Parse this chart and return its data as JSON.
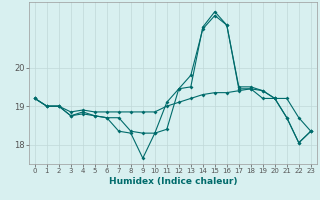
{
  "xlabel": "Humidex (Indice chaleur)",
  "background_color": "#d8f0f0",
  "grid_color": "#c0d8d8",
  "line_color": "#006b6b",
  "x": [
    0,
    1,
    2,
    3,
    4,
    5,
    6,
    7,
    8,
    9,
    10,
    11,
    12,
    13,
    14,
    15,
    16,
    17,
    18,
    19,
    20,
    21,
    22,
    23
  ],
  "line1": [
    19.2,
    19.0,
    19.0,
    18.85,
    18.9,
    18.85,
    18.85,
    18.85,
    18.85,
    18.85,
    18.85,
    19.0,
    19.1,
    19.2,
    19.3,
    19.35,
    19.35,
    19.4,
    19.45,
    19.2,
    19.2,
    19.2,
    18.7,
    18.35
  ],
  "line2": [
    19.2,
    19.0,
    19.0,
    18.75,
    18.8,
    18.75,
    18.7,
    18.7,
    18.35,
    18.3,
    18.3,
    19.1,
    19.45,
    19.8,
    21.0,
    21.35,
    21.1,
    19.45,
    19.45,
    19.4,
    19.2,
    18.7,
    18.05,
    18.35
  ],
  "line3": [
    19.2,
    19.0,
    19.0,
    18.75,
    18.85,
    18.75,
    18.7,
    18.35,
    18.3,
    17.65,
    18.3,
    18.4,
    19.45,
    19.5,
    21.05,
    21.45,
    21.1,
    19.5,
    19.5,
    19.4,
    19.2,
    18.7,
    18.05,
    18.35
  ],
  "ylim": [
    17.5,
    21.7
  ],
  "yticks": [
    18,
    19,
    20
  ],
  "xlim": [
    -0.5,
    23.5
  ]
}
